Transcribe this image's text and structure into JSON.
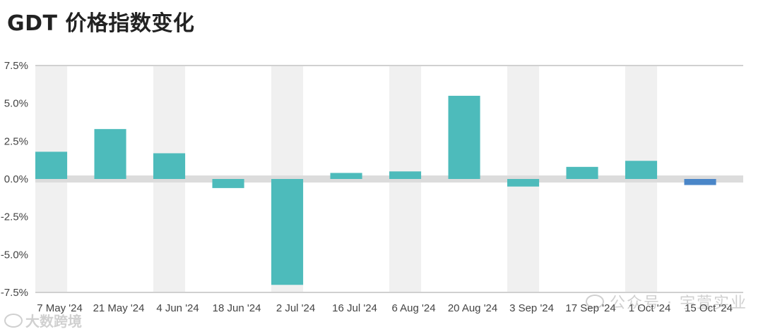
{
  "title": "GDT 价格指数变化",
  "watermarks": {
    "right": "公众号 · 宇萱实业",
    "left": "大数跨境"
  },
  "colors": {
    "bar": "#4dbbbb",
    "bar_highlight": "#4a86c8",
    "stripe": "#f0f0f0",
    "zero_band": "#dcdcdc",
    "grid": "#d0d0d0"
  },
  "chart_data": {
    "type": "bar",
    "categories": [
      "7 May '24",
      "21 May '24",
      "4 Jun '24",
      "18 Jun '24",
      "2 Jul '24",
      "16 Jul '24",
      "6 Aug '24",
      "20 Aug '24",
      "3 Sep '24",
      "17 Sep '24",
      "1 Oct '24",
      "15 Oct '24"
    ],
    "values": [
      1.8,
      3.3,
      1.7,
      -0.6,
      -7.0,
      0.4,
      0.5,
      5.5,
      -0.5,
      0.8,
      1.2,
      -0.4
    ],
    "highlight_index": 11,
    "ylim": [
      -7.5,
      7.5
    ],
    "yticks": [
      7.5,
      5.0,
      2.5,
      0.0,
      -2.5,
      -5.0,
      -7.5
    ],
    "ytick_labels": [
      "7.5%",
      "5.0%",
      "2.5%",
      "0.0%",
      "-2.5%",
      "-5.0%",
      "-7.5%"
    ],
    "title": "GDT 价格指数变化",
    "xlabel": "",
    "ylabel": "",
    "grid": true,
    "alternating_column_shading": true
  }
}
